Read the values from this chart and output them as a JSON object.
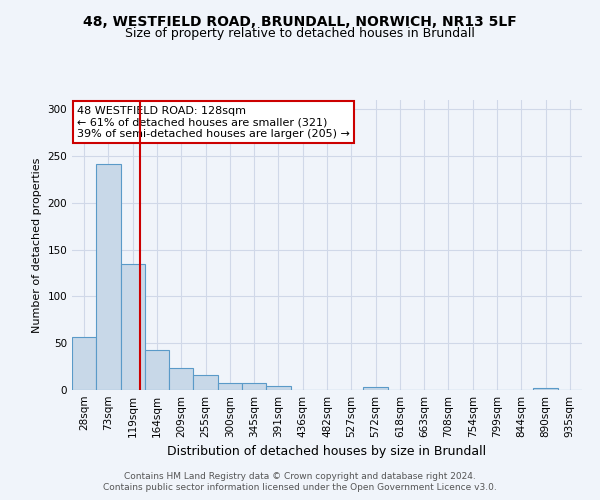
{
  "title1": "48, WESTFIELD ROAD, BRUNDALL, NORWICH, NR13 5LF",
  "title2": "Size of property relative to detached houses in Brundall",
  "xlabel": "Distribution of detached houses by size in Brundall",
  "ylabel": "Number of detached properties",
  "categories": [
    "28sqm",
    "73sqm",
    "119sqm",
    "164sqm",
    "209sqm",
    "255sqm",
    "300sqm",
    "345sqm",
    "391sqm",
    "436sqm",
    "482sqm",
    "527sqm",
    "572sqm",
    "618sqm",
    "663sqm",
    "708sqm",
    "754sqm",
    "799sqm",
    "844sqm",
    "890sqm",
    "935sqm"
  ],
  "values": [
    57,
    242,
    135,
    43,
    23,
    16,
    7,
    7,
    4,
    0,
    0,
    0,
    3,
    0,
    0,
    0,
    0,
    0,
    0,
    2,
    0
  ],
  "bar_color": "#c8d8e8",
  "bar_edge_color": "#5a9ac8",
  "grid_color": "#d0d8e8",
  "background_color": "#f0f4fa",
  "annotation_line1": "48 WESTFIELD ROAD: 128sqm",
  "annotation_line2": "← 61% of detached houses are smaller (321)",
  "annotation_line3": "39% of semi-detached houses are larger (205) →",
  "annotation_box_color": "#ffffff",
  "annotation_box_edge": "#cc0000",
  "vline_x": 2.3,
  "vline_color": "#cc0000",
  "ylim": [
    0,
    310
  ],
  "yticks": [
    0,
    50,
    100,
    150,
    200,
    250,
    300
  ],
  "footer1": "Contains HM Land Registry data © Crown copyright and database right 2024.",
  "footer2": "Contains public sector information licensed under the Open Government Licence v3.0.",
  "title1_fontsize": 10,
  "title2_fontsize": 9,
  "xlabel_fontsize": 9,
  "ylabel_fontsize": 8,
  "tick_fontsize": 7.5,
  "annot_fontsize": 8,
  "footer_fontsize": 6.5
}
